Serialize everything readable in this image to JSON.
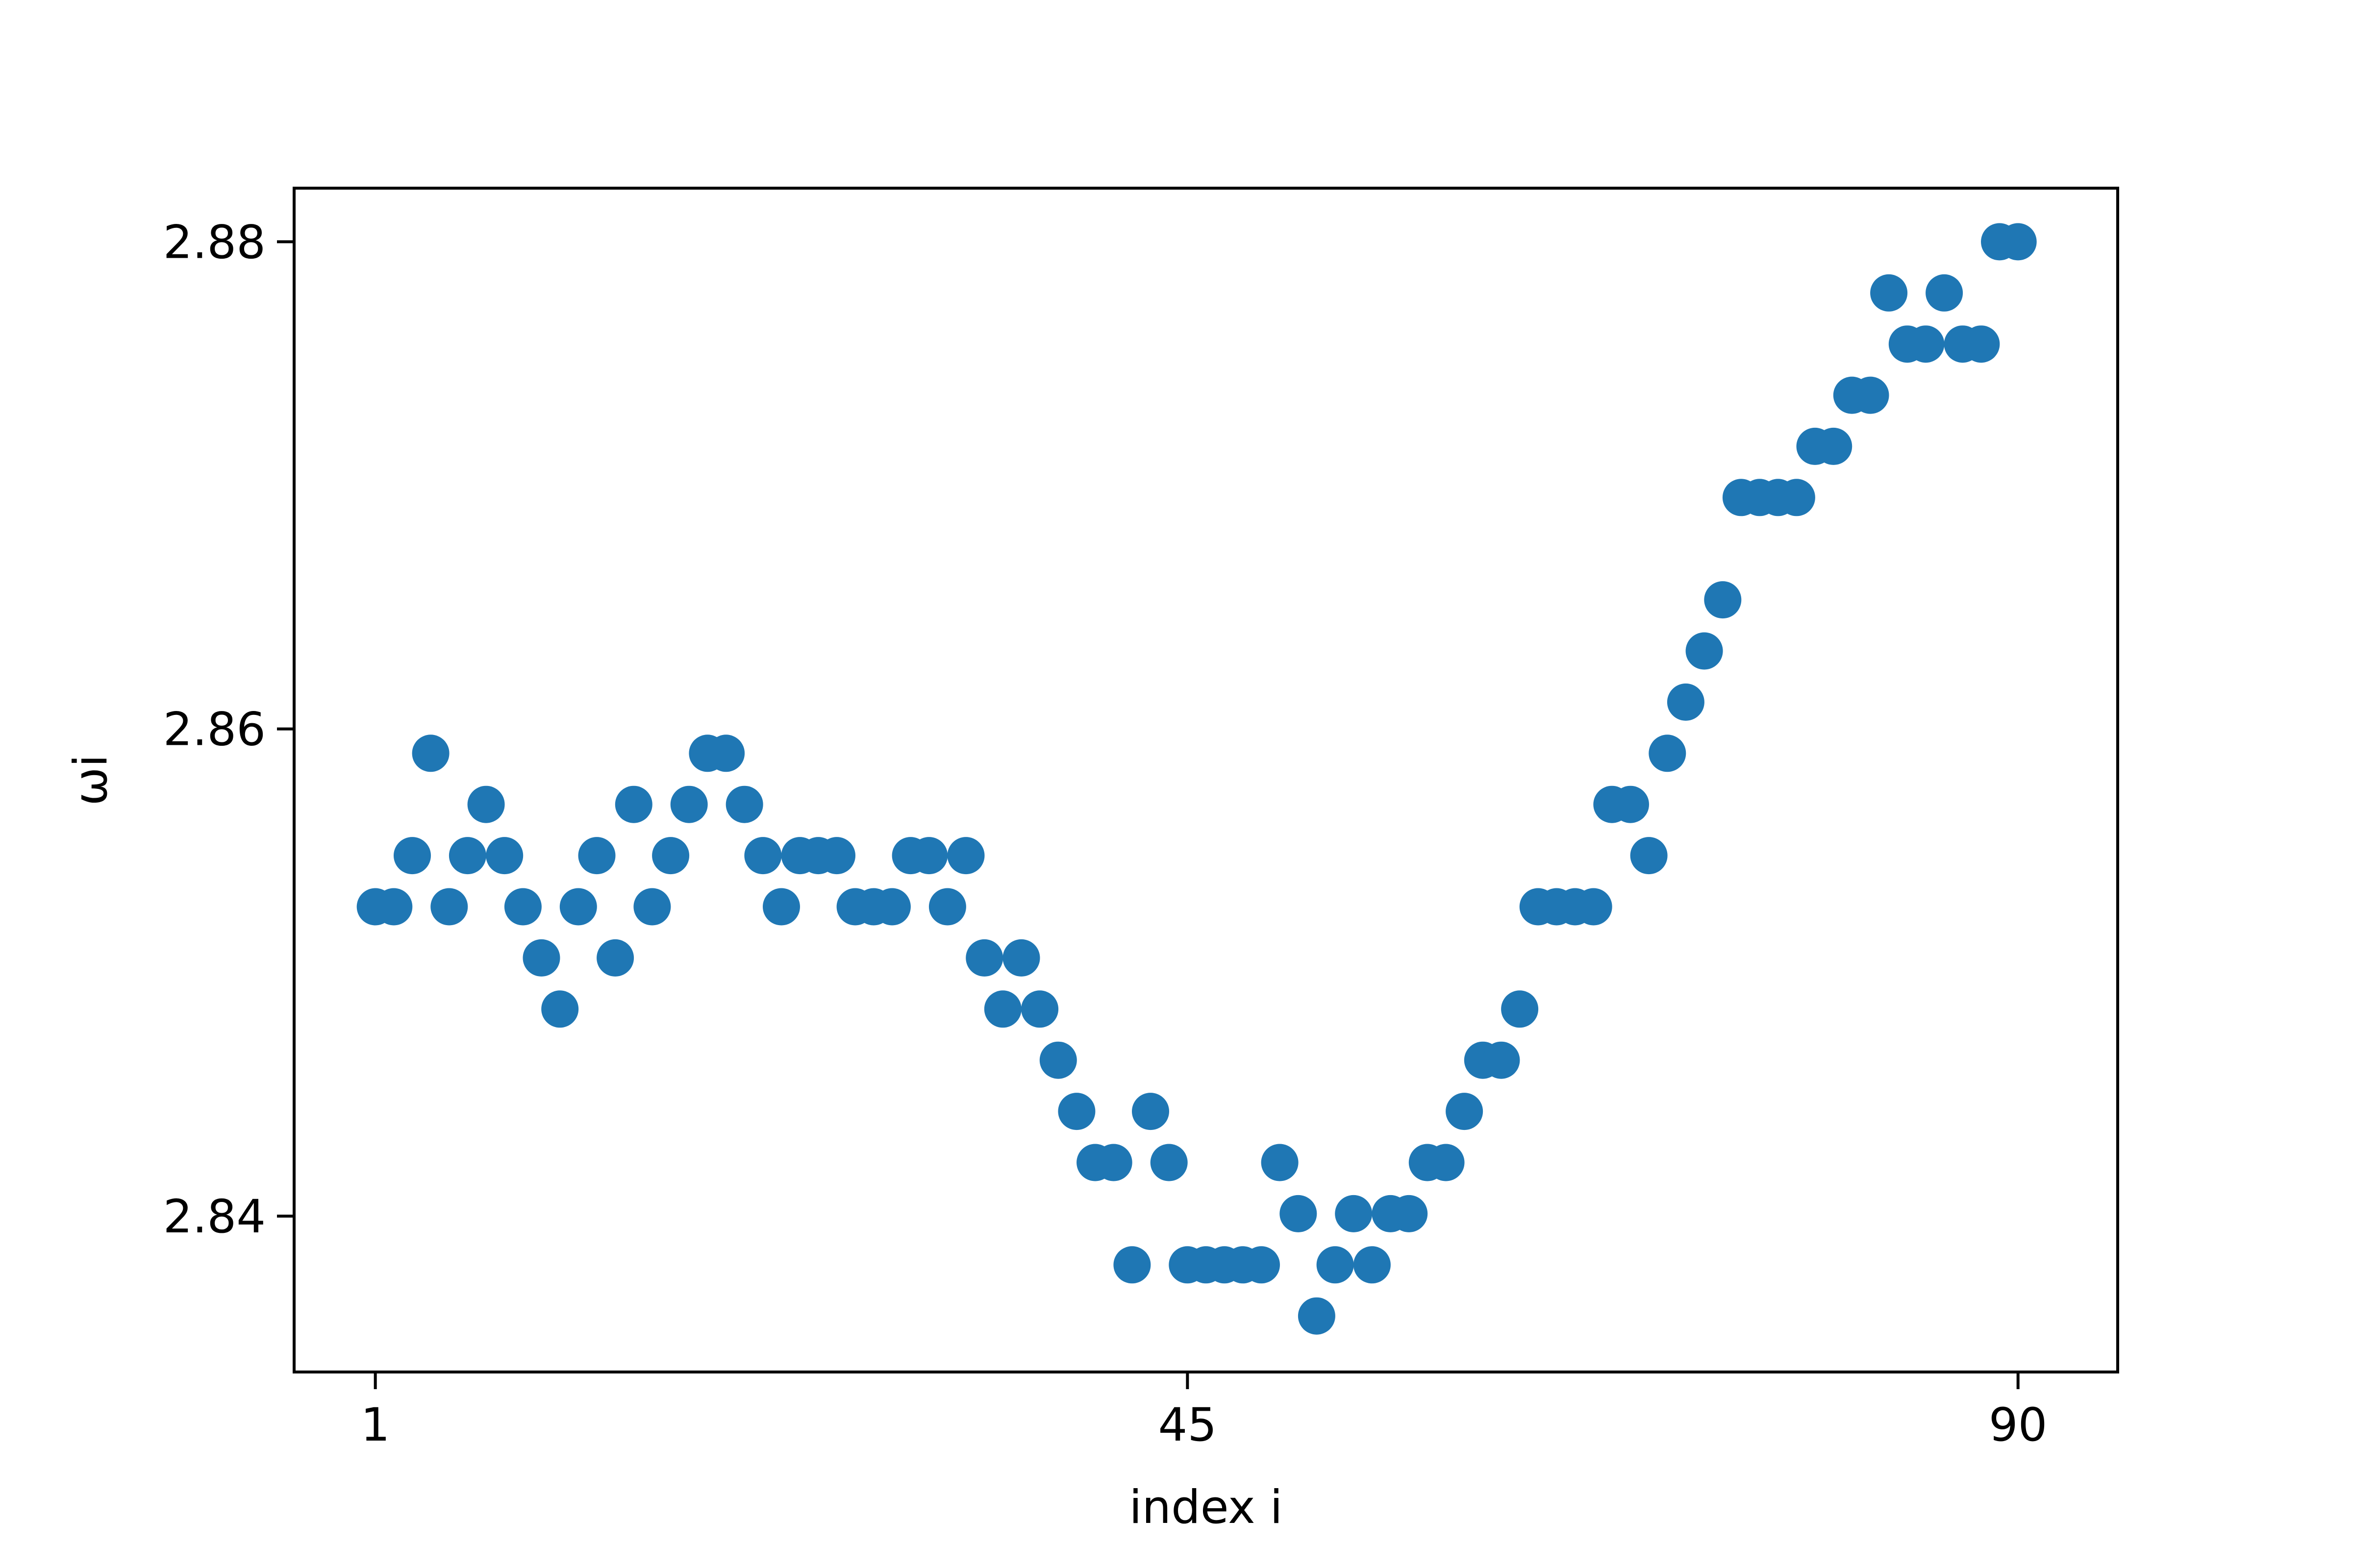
{
  "chart_data": {
    "type": "scatter",
    "title": "",
    "xlabel": "index i",
    "ylabel": "ωi",
    "xlim": [
      -3.4,
      95.4
    ],
    "ylim": [
      2.8336,
      2.8822
    ],
    "xticks": [
      1,
      45,
      90
    ],
    "xtick_labels": [
      "1",
      "45",
      "90"
    ],
    "yticks": [
      2.84,
      2.86,
      2.88
    ],
    "ytick_labels": [
      "2.84",
      "2.86",
      "2.88"
    ],
    "grid": false,
    "legend": "none",
    "marker_color": "#1f77b4",
    "x": [
      1,
      2,
      3,
      4,
      5,
      6,
      7,
      8,
      9,
      10,
      11,
      12,
      13,
      14,
      15,
      16,
      17,
      18,
      19,
      20,
      21,
      22,
      23,
      24,
      25,
      26,
      27,
      28,
      29,
      30,
      31,
      32,
      33,
      34,
      35,
      36,
      37,
      38,
      39,
      40,
      41,
      42,
      43,
      44,
      45,
      46,
      47,
      48,
      49,
      50,
      51,
      52,
      53,
      54,
      55,
      56,
      57,
      58,
      59,
      60,
      61,
      62,
      63,
      64,
      65,
      66,
      67,
      68,
      69,
      70,
      71,
      72,
      73,
      74,
      75,
      76,
      77,
      78,
      79,
      80,
      81,
      82,
      83,
      84,
      85,
      86,
      87,
      88,
      89,
      90
    ],
    "y": [
      2.8527,
      2.8527,
      2.8548,
      2.859,
      2.8527,
      2.8548,
      2.8569,
      2.8548,
      2.8527,
      2.8506,
      2.8485,
      2.8527,
      2.8548,
      2.8506,
      2.8569,
      2.8527,
      2.8548,
      2.8569,
      2.859,
      2.859,
      2.8569,
      2.8548,
      2.8527,
      2.8548,
      2.8548,
      2.8548,
      2.8527,
      2.8527,
      2.8527,
      2.8548,
      2.8548,
      2.8527,
      2.8548,
      2.8506,
      2.8485,
      2.8506,
      2.8485,
      2.8464,
      2.8443,
      2.8422,
      2.8422,
      2.838,
      2.8443,
      2.8422,
      2.838,
      2.838,
      2.838,
      2.838,
      2.838,
      2.8422,
      2.8401,
      2.8359,
      2.838,
      2.8401,
      2.838,
      2.8401,
      2.8401,
      2.8422,
      2.8422,
      2.8443,
      2.8464,
      2.8464,
      2.8485,
      2.8527,
      2.8527,
      2.8527,
      2.8527,
      2.8569,
      2.8569,
      2.8548,
      2.859,
      2.8611,
      2.8632,
      2.8653,
      2.8695,
      2.8695,
      2.8695,
      2.8695,
      2.8716,
      2.8716,
      2.8737,
      2.8737,
      2.8779,
      2.8758,
      2.8758,
      2.8779,
      2.8758,
      2.8758,
      2.88,
      2.88
    ]
  }
}
